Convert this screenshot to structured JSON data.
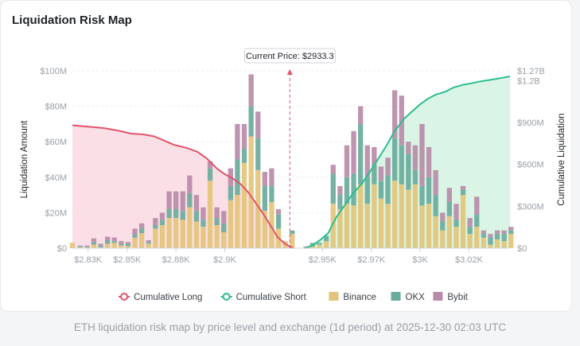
{
  "card": {
    "title": "Liquidation Risk Map"
  },
  "caption": "ETH liquidation risk map by price level and exchange (1d period) at 2025-12-30 02:03 UTC",
  "chart_data": {
    "type": "bar",
    "title": "Liquidation Risk Map",
    "xlabel": "",
    "ylabel": "Liquidation Amount",
    "y2label": "Cumulative Liquidation",
    "xlim": [
      2822,
      3046
    ],
    "ylim": [
      0,
      100
    ],
    "y2lim": [
      0,
      1270
    ],
    "x_ticks": [
      2830,
      2850,
      2875,
      2900,
      2950,
      2975,
      3000,
      3025
    ],
    "x_tick_labels": [
      "$2.83K",
      "$2.85K",
      "$2.88K",
      "$2.9K",
      "$2.95K",
      "$2.97K",
      "$3K",
      "$3.02K"
    ],
    "y_ticks": [
      0,
      20,
      40,
      60,
      80,
      100
    ],
    "y_tick_labels": [
      "$0",
      "$20M",
      "$40M",
      "$60M",
      "$80M",
      "$100M"
    ],
    "y2_ticks": [
      0,
      300,
      600,
      900,
      1200,
      1270
    ],
    "y2_tick_labels": [
      "$0",
      "$300M",
      "$600M",
      "$900M",
      "$1.2B",
      "$1.27B"
    ],
    "current_price": {
      "value": 2933.3,
      "label": "Current Price: $2933.3"
    },
    "colors": {
      "binance": "#e3c47a",
      "okx": "#6aab9c",
      "bybit": "#b98ba8",
      "long": "#e0546c",
      "short": "#2bbd8e",
      "long_fill": "#fadde3",
      "short_fill": "#d6f3e2"
    },
    "legend": {
      "position": "bottom",
      "items": [
        {
          "label": "Cumulative Long",
          "key": "long",
          "kind": "line"
        },
        {
          "label": "Cumulative Short",
          "key": "short",
          "kind": "line"
        },
        {
          "label": "Binance",
          "key": "binance",
          "kind": "box"
        },
        {
          "label": "OKX",
          "key": "okx",
          "kind": "box"
        },
        {
          "label": "Bybit",
          "key": "bybit",
          "kind": "box"
        }
      ]
    },
    "bar_width": 3.3,
    "unit": "$M",
    "series": [
      {
        "name": "Binance",
        "key": "binance"
      },
      {
        "name": "OKX",
        "key": "okx"
      },
      {
        "name": "Bybit",
        "key": "bybit"
      }
    ],
    "bars": [
      {
        "price": 2822.0,
        "binance": 3,
        "okx": 0,
        "bybit": 0
      },
      {
        "price": 2826.0,
        "binance": 0.5,
        "okx": 0.5,
        "bybit": 0.5
      },
      {
        "price": 2829.5,
        "binance": 0.5,
        "okx": 0.5,
        "bybit": 0.5
      },
      {
        "price": 2833.0,
        "binance": 2,
        "okx": 1.5,
        "bybit": 2
      },
      {
        "price": 2836.5,
        "binance": 0.5,
        "okx": 1,
        "bybit": 1
      },
      {
        "price": 2840.0,
        "binance": 2.5,
        "okx": 2,
        "bybit": 2
      },
      {
        "price": 2843.5,
        "binance": 3,
        "okx": 1,
        "bybit": 2
      },
      {
        "price": 2847.0,
        "binance": 1.5,
        "okx": 1,
        "bybit": 1.5
      },
      {
        "price": 2850.5,
        "binance": 1,
        "okx": 1.5,
        "bybit": 1
      },
      {
        "price": 2854.0,
        "binance": 6,
        "okx": 2,
        "bybit": 3
      },
      {
        "price": 2857.5,
        "binance": 8.5,
        "okx": 3,
        "bybit": 2.5
      },
      {
        "price": 2861.0,
        "binance": 2.5,
        "okx": 1,
        "bybit": 1
      },
      {
        "price": 2864.5,
        "binance": 11,
        "okx": 2,
        "bybit": 4
      },
      {
        "price": 2868.0,
        "binance": 13,
        "okx": 3,
        "bybit": 4
      },
      {
        "price": 2871.5,
        "binance": 17,
        "okx": 5,
        "bybit": 10
      },
      {
        "price": 2875.0,
        "binance": 17,
        "okx": 5,
        "bybit": 10
      },
      {
        "price": 2878.5,
        "binance": 16,
        "okx": 5,
        "bybit": 11
      },
      {
        "price": 2882.0,
        "binance": 23,
        "okx": 8,
        "bybit": 10
      },
      {
        "price": 2885.5,
        "binance": 15,
        "okx": 6,
        "bybit": 9
      },
      {
        "price": 2889.0,
        "binance": 12,
        "okx": 4,
        "bybit": 7
      },
      {
        "price": 2892.5,
        "binance": 38,
        "okx": 7,
        "bybit": 4
      },
      {
        "price": 2896.0,
        "binance": 13,
        "okx": 4,
        "bybit": 6
      },
      {
        "price": 2899.5,
        "binance": 9,
        "okx": 5,
        "bybit": 7
      },
      {
        "price": 2903.0,
        "binance": 27,
        "okx": 8,
        "bybit": 10
      },
      {
        "price": 2906.5,
        "binance": 30,
        "okx": 20,
        "bybit": 20
      },
      {
        "price": 2910.0,
        "binance": 48,
        "okx": 8,
        "bybit": 14
      },
      {
        "price": 2913.5,
        "binance": 63,
        "okx": 17,
        "bybit": 18
      },
      {
        "price": 2917.0,
        "binance": 44,
        "okx": 18,
        "bybit": 15
      },
      {
        "price": 2920.5,
        "binance": 21,
        "okx": 14,
        "bybit": 8
      },
      {
        "price": 2924.0,
        "binance": 26,
        "okx": 9,
        "bybit": 10
      },
      {
        "price": 2927.5,
        "binance": 11,
        "okx": 8,
        "bybit": 3
      },
      {
        "price": 2931.0,
        "binance": 4,
        "okx": 0,
        "bybit": 0
      },
      {
        "price": 2934.5,
        "binance": 8,
        "okx": 2,
        "bybit": 0
      },
      {
        "price": 2941.5,
        "binance": 0.5,
        "okx": 0,
        "bybit": 0.5
      },
      {
        "price": 2945.0,
        "binance": 1,
        "okx": 2,
        "bybit": 0
      },
      {
        "price": 2948.5,
        "binance": 2,
        "okx": 1,
        "bybit": 0
      },
      {
        "price": 2952.0,
        "binance": 4,
        "okx": 3,
        "bybit": 0
      },
      {
        "price": 2955.5,
        "binance": 25,
        "okx": 17,
        "bybit": 5
      },
      {
        "price": 2959.0,
        "binance": 22,
        "okx": 8,
        "bybit": 5
      },
      {
        "price": 2962.5,
        "binance": 25,
        "okx": 15,
        "bybit": 18
      },
      {
        "price": 2966.0,
        "binance": 24,
        "okx": 18,
        "bybit": 24
      },
      {
        "price": 2969.5,
        "binance": 36,
        "okx": 34,
        "bybit": 10
      },
      {
        "price": 2973.0,
        "binance": 25,
        "okx": 15,
        "bybit": 18
      },
      {
        "price": 2976.5,
        "binance": 36,
        "okx": 11,
        "bybit": 10
      },
      {
        "price": 2980.0,
        "binance": 28,
        "okx": 10,
        "bybit": 8
      },
      {
        "price": 2983.5,
        "binance": 25,
        "okx": 16,
        "bybit": 10
      },
      {
        "price": 2987.0,
        "binance": 38,
        "okx": 24,
        "bybit": 27
      },
      {
        "price": 2990.5,
        "binance": 36,
        "okx": 22,
        "bybit": 28
      },
      {
        "price": 2994.0,
        "binance": 33,
        "okx": 20,
        "bybit": 7
      },
      {
        "price": 2997.5,
        "binance": 36,
        "okx": 8,
        "bybit": 14
      },
      {
        "price": 3001.0,
        "binance": 24,
        "okx": 11,
        "bybit": 35
      },
      {
        "price": 3004.5,
        "binance": 25,
        "okx": 15,
        "bybit": 17
      },
      {
        "price": 3008.0,
        "binance": 18,
        "okx": 12,
        "bybit": 14
      },
      {
        "price": 3011.5,
        "binance": 10,
        "okx": 5,
        "bybit": 5
      },
      {
        "price": 3015.0,
        "binance": 18,
        "okx": 8,
        "bybit": 8
      },
      {
        "price": 3018.5,
        "binance": 12,
        "okx": 4,
        "bybit": 9
      },
      {
        "price": 3022.0,
        "binance": 30,
        "okx": 3,
        "bybit": 2
      },
      {
        "price": 3025.5,
        "binance": 8,
        "okx": 4,
        "bybit": 5
      },
      {
        "price": 3029.0,
        "binance": 12,
        "okx": 7,
        "bybit": 10
      },
      {
        "price": 3032.5,
        "binance": 6,
        "okx": 2,
        "bybit": 2
      },
      {
        "price": 3036.0,
        "binance": 2,
        "okx": 4,
        "bybit": 2
      },
      {
        "price": 3039.5,
        "binance": 5,
        "okx": 3,
        "bybit": 2
      },
      {
        "price": 3043.0,
        "binance": 4,
        "okx": 4,
        "bybit": 2
      },
      {
        "price": 3046.5,
        "binance": 8,
        "okx": 2,
        "bybit": 2
      }
    ],
    "cumulative_long": {
      "x": [
        2822,
        2830,
        2838,
        2846,
        2852,
        2858,
        2864,
        2869,
        2874,
        2880,
        2886,
        2891,
        2896,
        2900,
        2904,
        2908,
        2912,
        2916,
        2920,
        2924,
        2927,
        2931,
        2935
      ],
      "y": [
        880,
        870,
        860,
        840,
        820,
        815,
        800,
        770,
        740,
        720,
        690,
        640,
        570,
        530,
        500,
        460,
        400,
        320,
        240,
        150,
        80,
        30,
        0
      ]
    },
    "cumulative_short": {
      "x": [
        2941,
        2945,
        2949,
        2953,
        2957,
        2961,
        2965,
        2970,
        2974,
        2979,
        2983,
        2987,
        2992,
        2996,
        3000,
        3004,
        3008,
        3013,
        3017,
        3022,
        3026,
        3031,
        3036,
        3040,
        3046
      ],
      "y": [
        0,
        20,
        60,
        110,
        220,
        300,
        380,
        460,
        540,
        650,
        740,
        840,
        930,
        980,
        1030,
        1070,
        1100,
        1120,
        1150,
        1170,
        1180,
        1195,
        1205,
        1215,
        1230
      ]
    }
  }
}
